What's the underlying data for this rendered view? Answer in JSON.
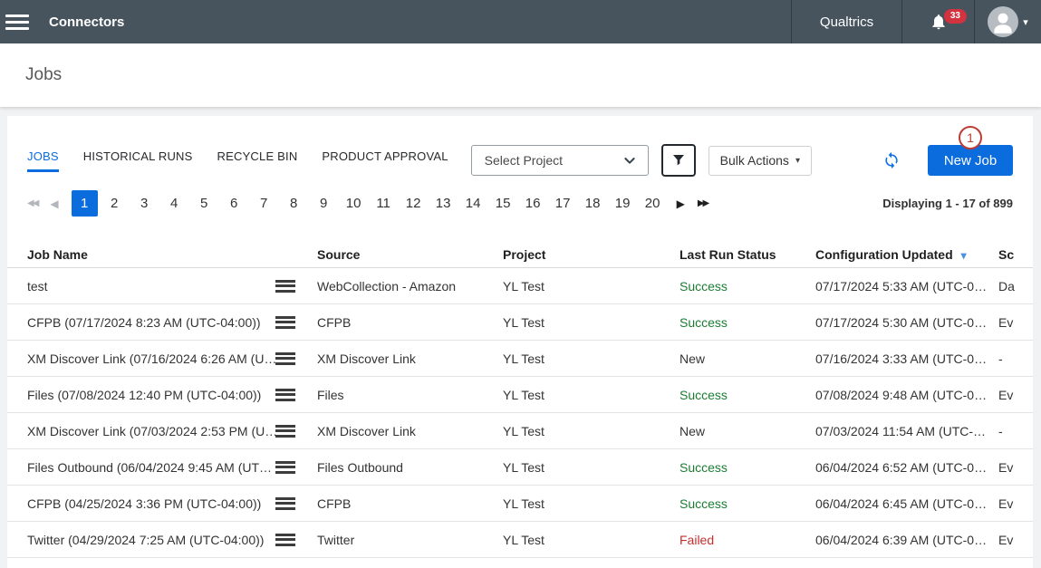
{
  "topbar": {
    "title": "Connectors",
    "brand": "Qualtrics",
    "notification_count": "33"
  },
  "page": {
    "title": "Jobs"
  },
  "tabs": {
    "items": [
      {
        "label": "JOBS",
        "active": true
      },
      {
        "label": "HISTORICAL RUNS",
        "active": false
      },
      {
        "label": "RECYCLE BIN",
        "active": false
      },
      {
        "label": "PRODUCT APPROVAL",
        "active": false
      }
    ]
  },
  "toolbar": {
    "project_select": {
      "value": "Select Project"
    },
    "bulk_actions": {
      "label": "Bulk Actions"
    },
    "new_job": {
      "label": "New Job"
    },
    "annotation": {
      "number": "1"
    }
  },
  "icons": {
    "caret_down": "▾",
    "sort_caret": "▾",
    "page_first": "◀◀",
    "page_prev": "◀",
    "page_next": "▶",
    "page_last": "▶▶"
  },
  "pagination": {
    "pages": [
      "1",
      "2",
      "3",
      "4",
      "5",
      "6",
      "7",
      "8",
      "9",
      "10",
      "11",
      "12",
      "13",
      "14",
      "15",
      "16",
      "17",
      "18",
      "19",
      "20"
    ],
    "active": "1",
    "summary": "Displaying 1 - 17 of 899"
  },
  "table": {
    "headers": {
      "job_name": "Job Name",
      "source": "Source",
      "project": "Project",
      "status": "Last Run Status",
      "config_updated": "Configuration Updated",
      "schedule": "Sc"
    },
    "sorted_by": "Configuration Updated",
    "rows": [
      {
        "job_name": "test",
        "source": "WebCollection - Amazon",
        "project": "YL Test",
        "status": "Success",
        "status_type": "success",
        "config_updated": "07/17/2024 5:33 AM (UTC-0…",
        "schedule": "Da"
      },
      {
        "job_name": "CFPB (07/17/2024 8:23 AM (UTC-04:00))",
        "source": "CFPB",
        "project": "YL Test",
        "status": "Success",
        "status_type": "success",
        "config_updated": "07/17/2024 5:30 AM (UTC-0…",
        "schedule": "Ev"
      },
      {
        "job_name": "XM Discover Link (07/16/2024 6:26 AM (U…",
        "source": "XM Discover Link",
        "project": "YL Test",
        "status": "New",
        "status_type": "new",
        "config_updated": "07/16/2024 3:33 AM (UTC-0…",
        "schedule": "-"
      },
      {
        "job_name": "Files (07/08/2024 12:40 PM (UTC-04:00))",
        "source": "Files",
        "project": "YL Test",
        "status": "Success",
        "status_type": "success",
        "config_updated": "07/08/2024 9:48 AM (UTC-0…",
        "schedule": "Ev"
      },
      {
        "job_name": "XM Discover Link (07/03/2024 2:53 PM (U…",
        "source": "XM Discover Link",
        "project": "YL Test",
        "status": "New",
        "status_type": "new",
        "config_updated": "07/03/2024 11:54 AM (UTC-…",
        "schedule": "-"
      },
      {
        "job_name": "Files Outbound (06/04/2024 9:45 AM (UT…",
        "source": "Files Outbound",
        "project": "YL Test",
        "status": "Success",
        "status_type": "success",
        "config_updated": "06/04/2024 6:52 AM (UTC-0…",
        "schedule": "Ev"
      },
      {
        "job_name": "CFPB (04/25/2024 3:36 PM (UTC-04:00))",
        "source": "CFPB",
        "project": "YL Test",
        "status": "Success",
        "status_type": "success",
        "config_updated": "06/04/2024 6:45 AM (UTC-0…",
        "schedule": "Ev"
      },
      {
        "job_name": "Twitter (04/29/2024 7:25 AM (UTC-04:00))",
        "source": "Twitter",
        "project": "YL Test",
        "status": "Failed",
        "status_type": "failed",
        "config_updated": "06/04/2024 6:39 AM (UTC-0…",
        "schedule": "Ev"
      }
    ]
  },
  "colors": {
    "topbar_bg": "#47545e",
    "accent_blue": "#0b6cde",
    "badge_red": "#d2333f",
    "success_green": "#1c7c33",
    "failed_red": "#c72e2e",
    "annotation_red": "#bf3b33"
  }
}
